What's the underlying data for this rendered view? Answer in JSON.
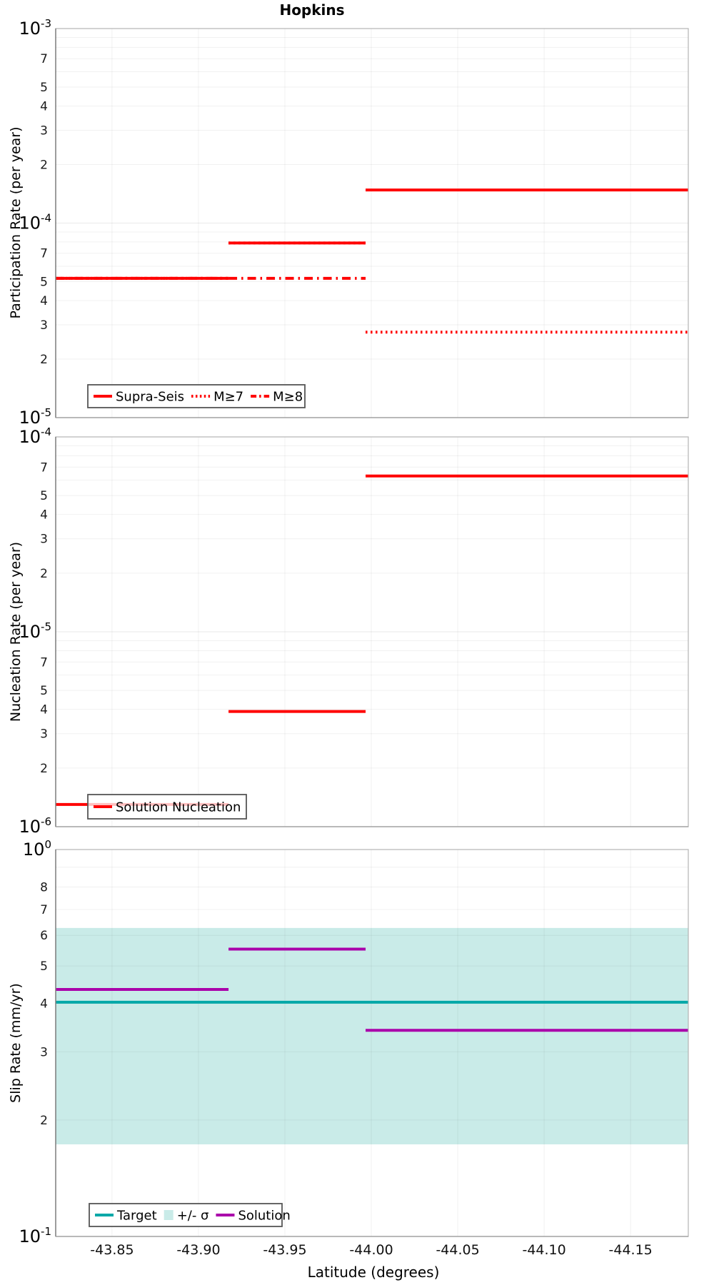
{
  "title": "Hopkins",
  "xlabel": "Latitude (degrees)",
  "x_domain": [
    -43.8174,
    -44.1834
  ],
  "x_ticks": [
    {
      "label": "-43.85",
      "value": -43.85
    },
    {
      "label": "-43.90",
      "value": -43.9
    },
    {
      "label": "-43.95",
      "value": -43.95
    },
    {
      "label": "-44.00",
      "value": -44.0
    },
    {
      "label": "-44.05",
      "value": -44.05
    },
    {
      "label": "-44.10",
      "value": -44.1
    },
    {
      "label": "-44.15",
      "value": -44.15
    }
  ],
  "colors": {
    "red": "#ff0000",
    "teal": "#00a8a8",
    "purple": "#aa00aa",
    "band": "#c9ebe8",
    "grid_minor": "rgba(60,60,60,0.07)",
    "grid_major": "rgba(60,60,60,0.11)",
    "panel_border": "#b4b4b4",
    "left_spine": "#787878",
    "bottom_spine": "#989898",
    "legend_border": "#565656",
    "tick_text": "#1a1a1a"
  },
  "chart_data": [
    {
      "type": "step-line",
      "ylabel": "Participation Rate (per year)",
      "yscale": "log",
      "ylim": [
        1e-05,
        0.001
      ],
      "minor_labels": [
        7,
        5,
        4,
        3,
        2
      ],
      "series": [
        {
          "name": "Supra-Seis",
          "color_key": "red",
          "style": "solid",
          "segments": [
            [
              -43.8174,
              -43.9174,
              5.2e-05
            ],
            [
              -43.9174,
              -43.9967,
              7.9e-05
            ],
            [
              -43.9967,
              -44.1834,
              0.000148
            ]
          ]
        },
        {
          "name": "M≥7",
          "color_key": "red",
          "style": "dotted",
          "segments": [
            [
              -43.8174,
              -43.9174,
              5.2e-05
            ],
            [
              -43.9174,
              -43.9967,
              7.9e-05
            ],
            [
              -43.9967,
              -44.1834,
              2.75e-05
            ]
          ]
        },
        {
          "name": "M≥8",
          "color_key": "red",
          "style": "dashdot",
          "segments": [
            [
              -43.8174,
              -43.9174,
              5.2e-05
            ],
            [
              -43.9174,
              -43.9967,
              5.2e-05
            ]
          ]
        }
      ],
      "legend": {
        "entries": [
          {
            "label": "Supra-Seis",
            "sample": "solid",
            "color_key": "red"
          },
          {
            "label": "M≥7",
            "sample": "dotted",
            "color_key": "red"
          },
          {
            "label": "M≥8",
            "sample": "dashdot",
            "color_key": "red"
          }
        ]
      }
    },
    {
      "type": "step-line",
      "ylabel": "Nucleation Rate (per year)",
      "yscale": "log",
      "ylim": [
        1e-06,
        0.0001
      ],
      "minor_labels": [
        7,
        5,
        4,
        3,
        2
      ],
      "series": [
        {
          "name": "Solution Nucleation",
          "color_key": "red",
          "style": "solid",
          "segments": [
            [
              -43.8174,
              -43.9174,
              1.3e-06
            ],
            [
              -43.9174,
              -43.9967,
              3.9e-06
            ],
            [
              -43.9967,
              -44.1834,
              6.3e-05
            ]
          ]
        }
      ],
      "legend": {
        "entries": [
          {
            "label": "Solution Nucleation",
            "sample": "solid",
            "color_key": "red"
          }
        ]
      }
    },
    {
      "type": "step-line",
      "ylabel": "Slip Rate (mm/yr)",
      "yscale": "log",
      "ylim": [
        0.1,
        1.0
      ],
      "minor_labels": [
        8,
        7,
        6,
        5,
        4,
        3,
        2
      ],
      "band": {
        "name": "+/- σ",
        "color_key": "band",
        "lo": 0.173,
        "hi": 0.627
      },
      "series": [
        {
          "name": "Target",
          "color_key": "teal",
          "style": "solid",
          "segments": [
            [
              -43.8174,
              -44.1834,
              0.403
            ]
          ]
        },
        {
          "name": "Solution",
          "color_key": "purple",
          "style": "solid",
          "segments": [
            [
              -43.8174,
              -43.9174,
              0.435
            ],
            [
              -43.9174,
              -43.9967,
              0.553
            ],
            [
              -43.9967,
              -44.1834,
              0.341
            ]
          ]
        }
      ],
      "legend": {
        "entries": [
          {
            "label": "Target",
            "sample": "solid",
            "color_key": "teal"
          },
          {
            "label": "+/- σ",
            "sample": "patch",
            "color_key": "band"
          },
          {
            "label": "Solution",
            "sample": "solid",
            "color_key": "purple"
          }
        ]
      }
    }
  ]
}
